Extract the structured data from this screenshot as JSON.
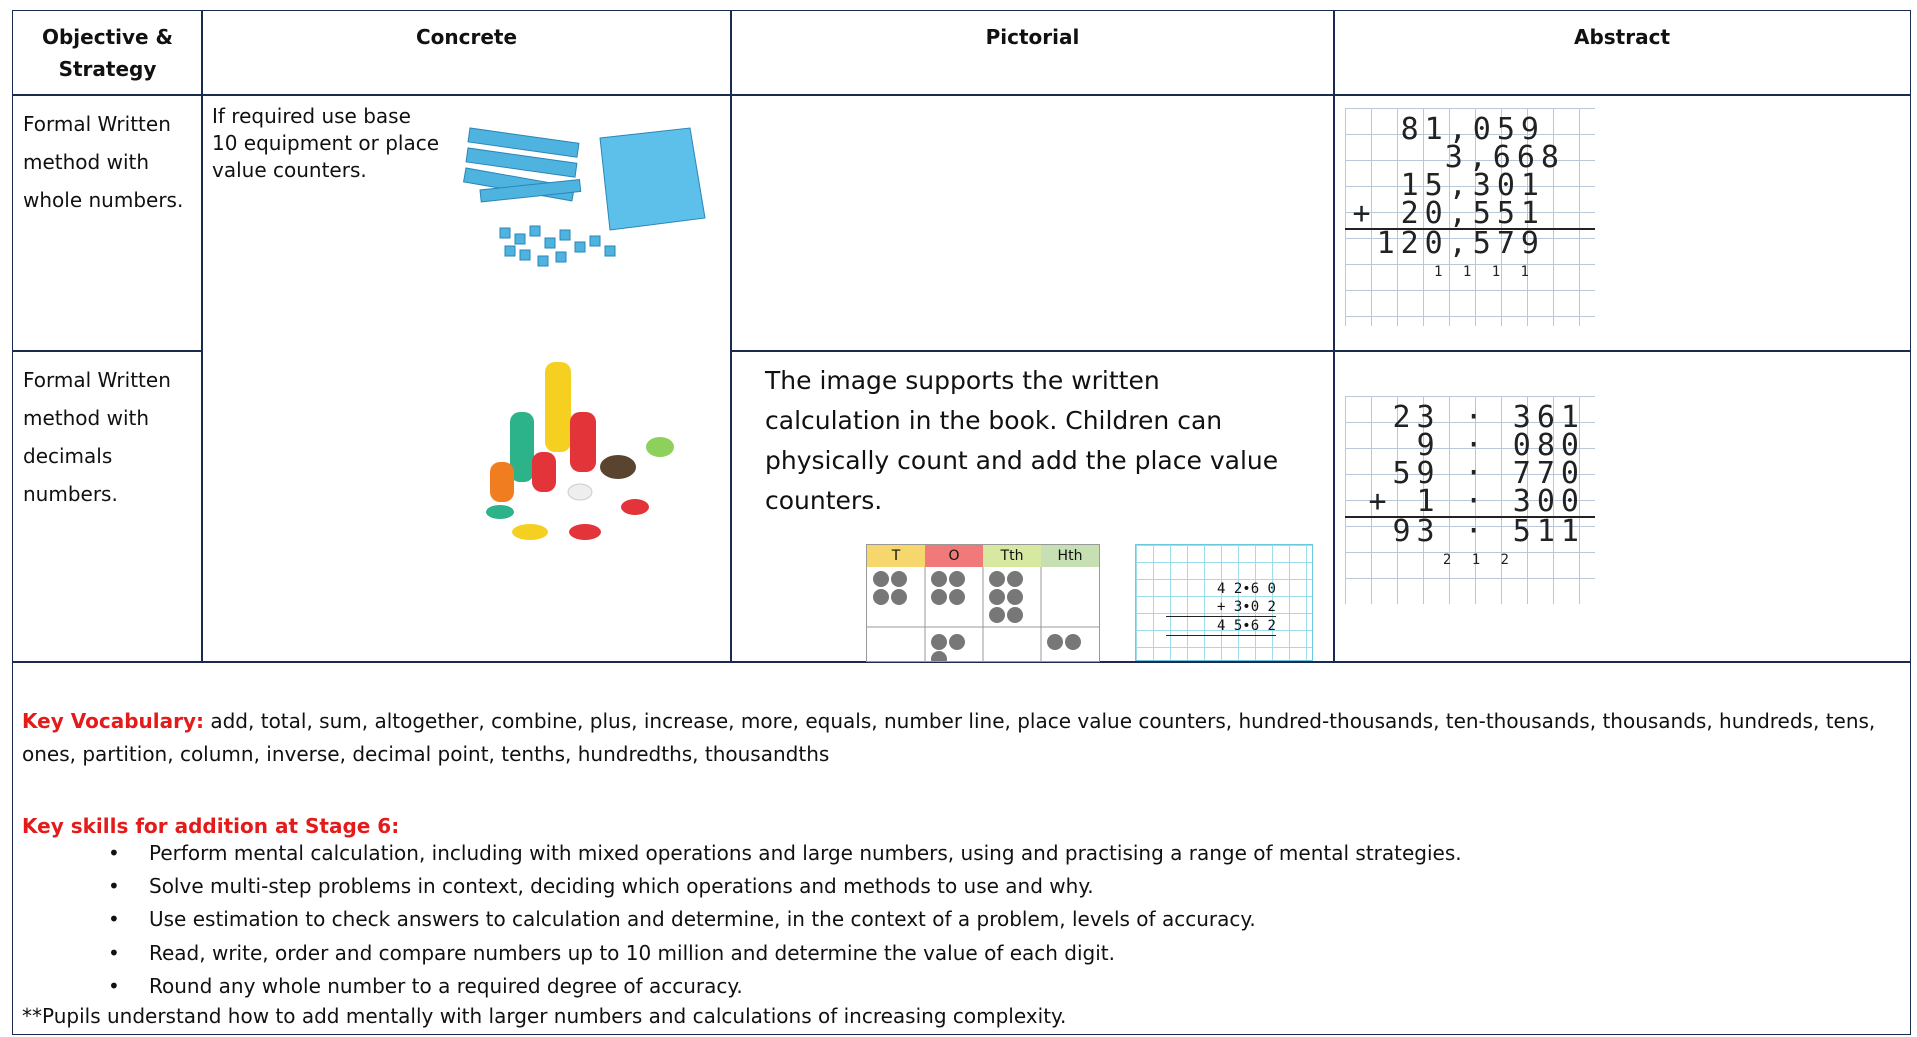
{
  "table": {
    "headers": [
      "Objective & Strategy",
      "Concrete",
      "Pictorial",
      "Abstract"
    ],
    "rows": [
      {
        "objective": "Formal Written method with whole numbers.",
        "concrete": "If required use base 10 equipment or place value counters.",
        "abstract": {
          "lines": [
            "81,059",
            "3,668",
            "15,301",
            "+ 20,551",
            "120,579"
          ],
          "carries": "1 1 1 1"
        }
      },
      {
        "objective": "Formal Written method with decimals numbers.",
        "pictorial": "The image supports the written calculation in the book. Children can physically count and add the place value counters.",
        "place_value_chart": [
          "T",
          "O",
          "Tth",
          "Hth"
        ],
        "column_grid": [
          "4 2•6 0",
          "+ 3•0 2",
          "4 5•6 2"
        ],
        "abstract": {
          "lines": [
            "23 · 361",
            "9 · 080",
            "59 · 770",
            "+ 1 · 300",
            "93 · 511"
          ],
          "carries": "2 1 2"
        }
      }
    ]
  },
  "footer": {
    "vocabulary_label": "Key Vocabulary:",
    "vocabulary": "add, total, sum, altogether, combine, plus, increase, more, equals, number line, place value counters, hundred-thousands, ten-thousands, thousands, hundreds, tens, ones, partition, column, inverse, decimal point, tenths, hundredths, thousandths",
    "skills_title": "Key skills for addition at Stage 6:",
    "skills": [
      "Perform mental calculation, including with mixed operations and large numbers, using and practising a range of mental strategies.",
      "Solve multi-step problems in context, deciding which operations and methods to use and why.",
      "Use estimation to check answers to calculation and determine, in the context of a problem, levels of accuracy.",
      "Read, write, order and compare numbers up to 10 million and determine the value of each digit.",
      "Round any whole number to a required degree of accuracy."
    ],
    "note": "**Pupils understand how to add mentally with larger numbers and calculations of increasing complexity."
  }
}
